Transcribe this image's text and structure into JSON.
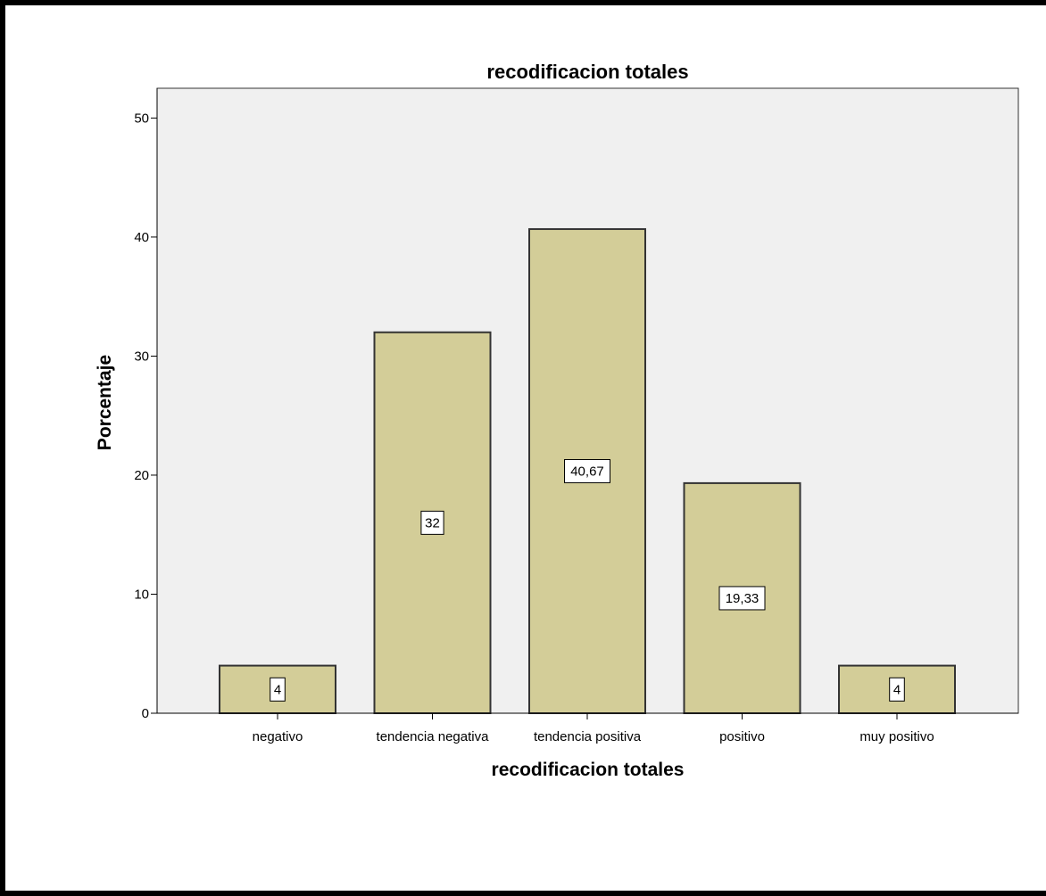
{
  "chart_data": {
    "type": "bar",
    "title": "recodificacion totales",
    "xlabel": "recodificacion totales",
    "ylabel": "Porcentaje",
    "categories": [
      "negativo",
      "tendencia negativa",
      "tendencia positiva",
      "positivo",
      "muy positivo"
    ],
    "values": [
      4,
      32,
      40.67,
      19.33,
      4
    ],
    "data_labels": [
      "4",
      "32",
      "40,67",
      "19,33",
      "4"
    ],
    "yticks": [
      0,
      10,
      20,
      30,
      40,
      50
    ],
    "ytick_labels": [
      "0",
      "10",
      "20",
      "30",
      "40",
      "50"
    ],
    "ylim": [
      0,
      52.5
    ],
    "grid": false,
    "colors": {
      "bar_fill": "#d3cd98",
      "bar_stroke": "#333333",
      "plot_background": "#f0f0f0",
      "label_box": "#ffffff"
    }
  }
}
